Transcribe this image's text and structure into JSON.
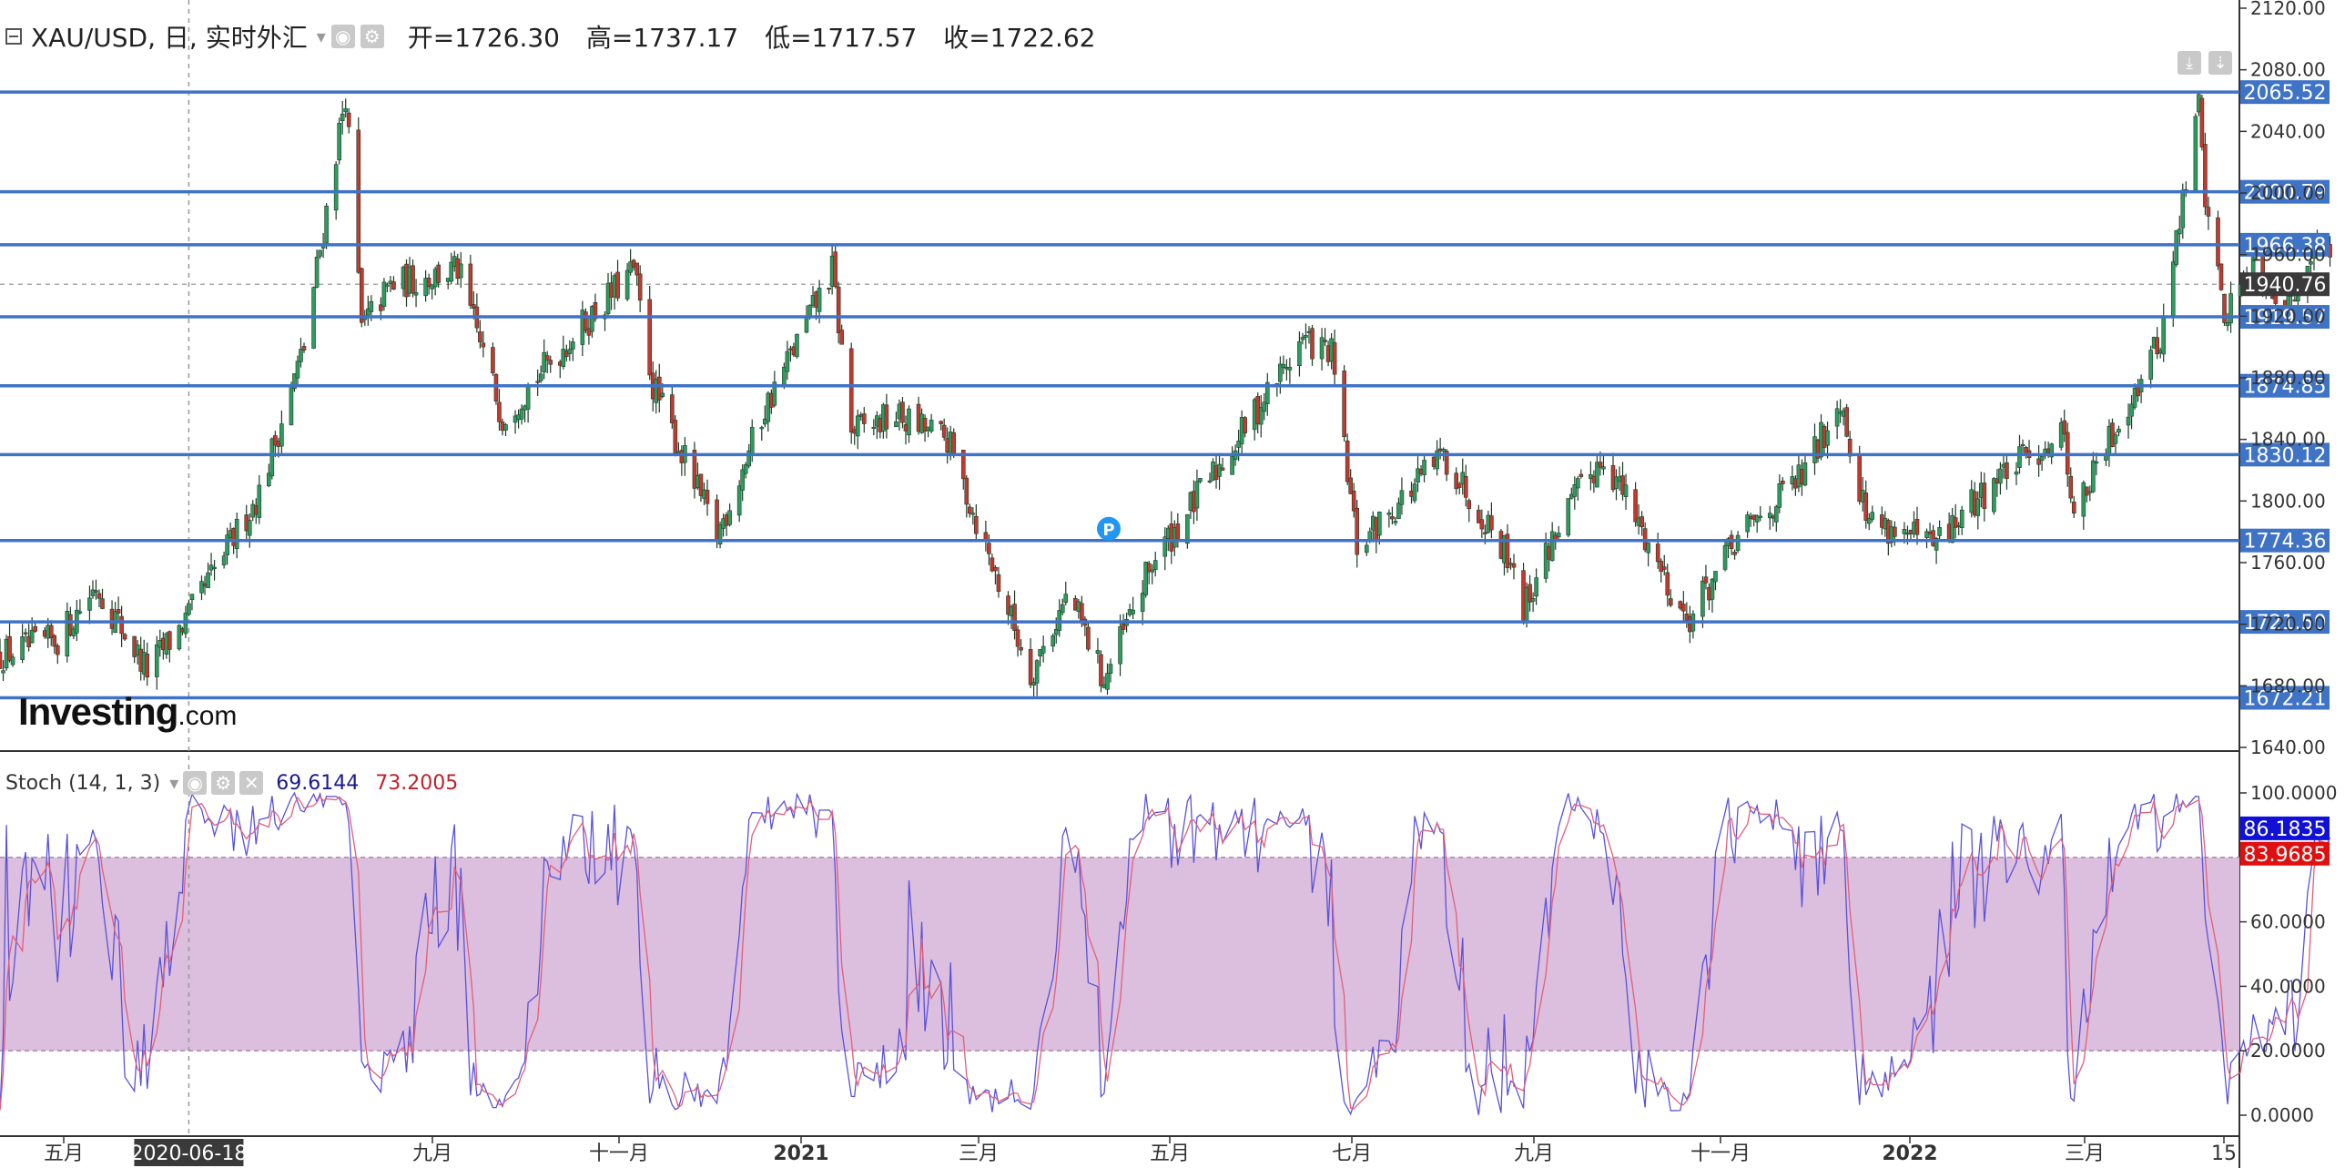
{
  "header": {
    "symbol": "XAU/USD, 日, 实时外汇",
    "open": "开=1726.30",
    "high": "高=1737.17",
    "low": "低=1717.57",
    "close": "收=1722.62"
  },
  "logo": {
    "main": "Investing",
    "suffix": ".com"
  },
  "stoch": {
    "name": "Stoch (14, 1, 3)",
    "k_value": "69.6144",
    "d_value": "73.2005",
    "k_badge": "86.1835",
    "d_badge": "83.9685",
    "k_color": "#5a52d8",
    "d_color": "#e0607a",
    "band_color": "#dcbede"
  },
  "crosshair": {
    "date_label": "2020-06-18",
    "price_label": "1940.76"
  },
  "colors": {
    "up": "#2e9c5e",
    "down": "#c4392f",
    "level_line": "#3f73c6",
    "badge": "#3f73c6"
  },
  "icons": [
    "collapse-icon",
    "settings-icon",
    "eye-icon",
    "close-icon",
    "download-icon",
    "arrow-down-icon"
  ],
  "chart_data": [
    {
      "type": "candlestick",
      "title": "XAU/USD, 日, 实时外汇",
      "y_axis": {
        "position": "right",
        "range": [
          1640,
          2120
        ],
        "ticks": [
          2120,
          2080,
          2040,
          2000,
          1960,
          1920,
          1880,
          1840,
          1800,
          1760,
          1720,
          1680,
          1640
        ],
        "tick_labels": [
          "2120.00",
          "2080.00",
          "2040.00",
          "2000.00",
          "1960.00",
          "1920.00",
          "1880.00",
          "1840.00",
          "1800.00",
          "1760.00",
          "1720.00",
          "1680.00",
          "1640.00"
        ]
      },
      "x_axis": {
        "tick_labels": [
          "五月",
          "九月",
          "十一月",
          "2021",
          "三月",
          "五月",
          "七月",
          "九月",
          "十一月",
          "2022",
          "三月",
          "15"
        ],
        "range": [
          "2020-04-20",
          "2022-03-15"
        ]
      },
      "horizontal_levels": [
        {
          "value": 2065.52,
          "label": "2065.52"
        },
        {
          "value": 2000.79,
          "label": "2000.79"
        },
        {
          "value": 1966.38,
          "label": "1966.38"
        },
        {
          "value": 1919.57,
          "label": "1919.57"
        },
        {
          "value": 1874.85,
          "label": "1874.85"
        },
        {
          "value": 1830.12,
          "label": "1830.12"
        },
        {
          "value": 1774.36,
          "label": "1774.36"
        },
        {
          "value": 1721.5,
          "label": "1721.50"
        },
        {
          "value": 1672.21,
          "label": "1672.21"
        }
      ],
      "close_path_keypoints": [
        [
          "2020-04-20",
          1700
        ],
        [
          "2020-05-08",
          1710
        ],
        [
          "2020-05-20",
          1745
        ],
        [
          "2020-06-05",
          1690
        ],
        [
          "2020-06-18",
          1725
        ],
        [
          "2020-07-10",
          1805
        ],
        [
          "2020-07-24",
          1900
        ],
        [
          "2020-08-06",
          2065
        ],
        [
          "2020-08-11",
          1912
        ],
        [
          "2020-08-20",
          1940
        ],
        [
          "2020-09-10",
          1950
        ],
        [
          "2020-09-24",
          1855
        ],
        [
          "2020-10-15",
          1905
        ],
        [
          "2020-11-04",
          1950
        ],
        [
          "2020-11-10",
          1875
        ],
        [
          "2020-11-30",
          1777
        ],
        [
          "2020-12-15",
          1860
        ],
        [
          "2021-01-05",
          1950
        ],
        [
          "2021-01-11",
          1845
        ],
        [
          "2021-01-25",
          1855
        ],
        [
          "2021-02-10",
          1840
        ],
        [
          "2021-03-08",
          1688
        ],
        [
          "2021-03-20",
          1740
        ],
        [
          "2021-03-31",
          1683
        ],
        [
          "2021-04-15",
          1760
        ],
        [
          "2021-05-10",
          1835
        ],
        [
          "2021-06-01",
          1905
        ],
        [
          "2021-06-10",
          1895
        ],
        [
          "2021-06-18",
          1770
        ],
        [
          "2021-07-15",
          1830
        ],
        [
          "2021-08-06",
          1760
        ],
        [
          "2021-08-09",
          1730
        ],
        [
          "2021-08-20",
          1785
        ],
        [
          "2021-09-03",
          1830
        ],
        [
          "2021-09-20",
          1760
        ],
        [
          "2021-09-29",
          1722
        ],
        [
          "2021-10-15",
          1775
        ],
        [
          "2021-11-05",
          1818
        ],
        [
          "2021-11-16",
          1868
        ],
        [
          "2021-11-24",
          1790
        ],
        [
          "2021-12-15",
          1770
        ],
        [
          "2022-01-04",
          1815
        ],
        [
          "2022-01-25",
          1845
        ],
        [
          "2022-01-28",
          1790
        ],
        [
          "2022-02-14",
          1865
        ],
        [
          "2022-02-24",
          1905
        ],
        [
          "2022-03-08",
          2058
        ],
        [
          "2022-03-10",
          2000
        ],
        [
          "2022-03-16",
          1920
        ],
        [
          "2022-03-25",
          1955
        ],
        [
          "2022-04-05",
          1925
        ],
        [
          "2022-04-12",
          1966
        ],
        [
          "2022-04-18",
          1960
        ]
      ]
    },
    {
      "type": "line",
      "title": "Stoch (14, 1, 3)",
      "y_axis": {
        "position": "right",
        "range": [
          0,
          100
        ],
        "ticks": [
          100,
          80,
          60,
          40,
          20,
          0
        ],
        "tick_labels": [
          "100.0000",
          "80.0000",
          "60.0000",
          "40.0000",
          "20.0000",
          "0.0000"
        ]
      },
      "band": [
        20,
        80
      ],
      "series": [
        {
          "name": "%K",
          "last": 86.1835
        },
        {
          "name": "%D",
          "last": 83.9685
        }
      ]
    }
  ]
}
